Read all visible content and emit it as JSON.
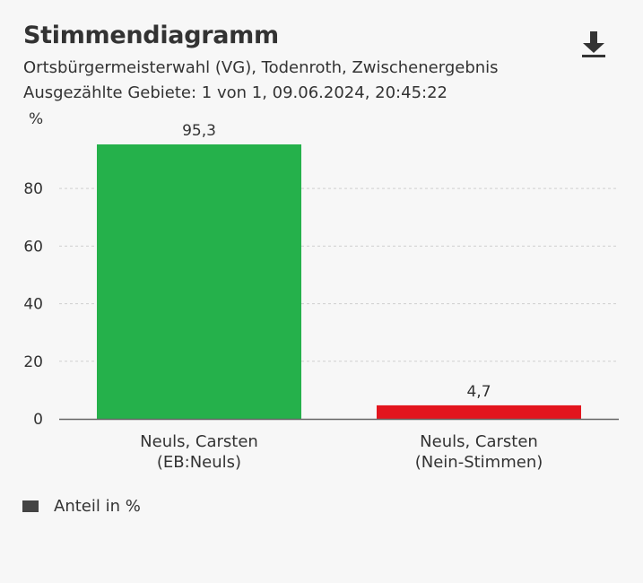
{
  "header": {
    "title": "Stimmendiagramm",
    "subtitle_line1": "Ortsbürgermeisterwahl (VG), Todenroth, Zwischenergebnis",
    "subtitle_line2": "Ausgezählte Gebiete: 1 von 1, 09.06.2024, 20:45:22",
    "download_icon": "download-icon"
  },
  "legend": {
    "label": "Anteil in %",
    "color": "#444444"
  },
  "chart_data": {
    "type": "bar",
    "title": "Stimmendiagramm",
    "ylabel": "%",
    "xlabel": "",
    "ylim": [
      0,
      95.3
    ],
    "yticks": [
      0,
      20,
      40,
      60,
      80
    ],
    "grid": true,
    "categories": [
      [
        "Neuls, Carsten",
        "(EB:Neuls)"
      ],
      [
        "Neuls, Carsten",
        "(Nein-Stimmen)"
      ]
    ],
    "values": [
      95.3,
      4.7
    ],
    "value_labels": [
      "95,3",
      "4,7"
    ],
    "colors": [
      "#25b14b",
      "#e3151e"
    ],
    "series": [
      {
        "name": "Anteil in %",
        "values": [
          95.3,
          4.7
        ]
      }
    ]
  }
}
